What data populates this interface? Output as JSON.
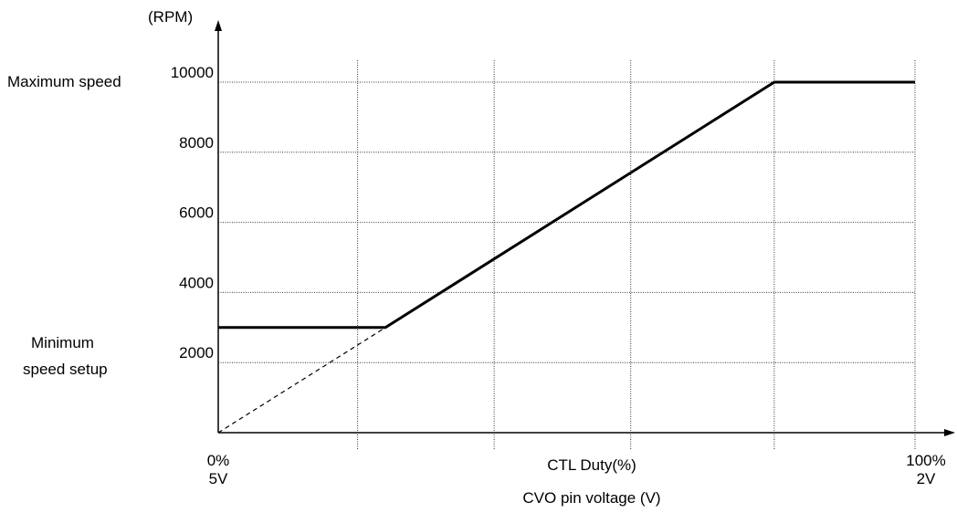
{
  "chart_data": {
    "type": "line",
    "ylabel": "(RPM)",
    "ylim": [
      0,
      10000
    ],
    "yticks": [
      {
        "value": 2000,
        "label": "2000"
      },
      {
        "value": 4000,
        "label": "4000"
      },
      {
        "value": 6000,
        "label": "6000"
      },
      {
        "value": 8000,
        "label": "8000"
      },
      {
        "value": 10000,
        "label": "10000"
      }
    ],
    "xlim": [
      0,
      100
    ],
    "xlabel": "CTL Duty(%)",
    "xlabel2": "CVO pin voltage (V)",
    "x_start_label": {
      "duty": "0%",
      "voltage": "5V"
    },
    "x_end_label": {
      "duty": "100%",
      "voltage": "2V"
    },
    "grid": true,
    "x_gridlines": [
      20,
      39.6,
      59.2,
      79.8,
      100
    ],
    "series": [
      {
        "style": "solid",
        "x": [
          0,
          24,
          79.8,
          100
        ],
        "y": [
          3000,
          3000,
          10000,
          10000
        ]
      },
      {
        "style": "dashed",
        "x": [
          0,
          24
        ],
        "y": [
          0,
          3000
        ]
      }
    ],
    "annotations": {
      "max_speed": {
        "text": "Maximum speed",
        "y": 10000
      },
      "min_speed": {
        "line1": "Minimum",
        "line2": "speed setup",
        "y": 3000
      }
    }
  }
}
